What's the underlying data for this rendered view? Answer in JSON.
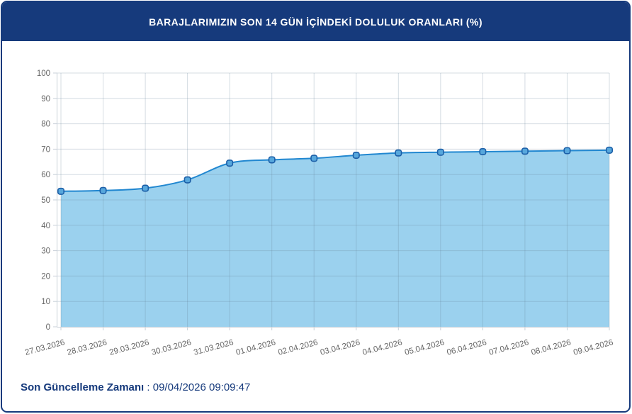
{
  "header": {
    "title": "BARAJLARIMIZIN SON 14 GÜN İÇİNDEKİ DOLULUK ORANLARI (%)"
  },
  "footer": {
    "label": "Son Güncelleme Zamanı",
    "separator": " : ",
    "value": "09/04/2026 09:09:47"
  },
  "colors": {
    "panel_border": "#163a7c",
    "header_bg": "#163a7c",
    "title_text": "#ffffff",
    "footer_text": "#163a7c",
    "line": "#2187d0",
    "area_fill": "#9bd1ee",
    "marker_fill": "#57a7dc",
    "marker_stroke": "#1b5ea7",
    "grid": "rgba(100,130,150,0.28)",
    "axis": "#c8d0d8",
    "axis_label": "#666666"
  },
  "chart_data": {
    "type": "area",
    "title": "BARAJLARIMIZIN SON 14 GÜN İÇİNDEKİ DOLULUK ORANLARI (%)",
    "categories": [
      "27.03.2026",
      "28.03.2026",
      "29.03.2026",
      "30.03.2026",
      "31.03.2026",
      "01.04.2026",
      "02.04.2026",
      "03.04.2026",
      "04.04.2026",
      "05.04.2026",
      "06.04.2026",
      "07.04.2026",
      "08.04.2026",
      "09.04.2026"
    ],
    "values": [
      53.4,
      53.7,
      54.6,
      57.9,
      64.5,
      65.8,
      66.4,
      67.6,
      68.5,
      68.8,
      69.0,
      69.2,
      69.4,
      69.6
    ],
    "xlabel": "",
    "ylabel": "",
    "ylim": [
      0,
      100
    ],
    "ytick_step": 10,
    "grid": true,
    "legend": false,
    "x_label_rotation_deg": -15
  }
}
